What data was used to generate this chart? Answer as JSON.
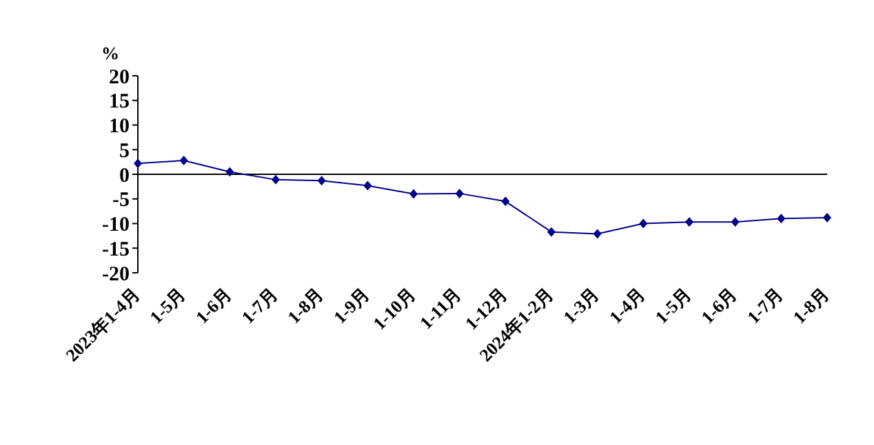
{
  "chart_data": {
    "type": "line",
    "ylabel": "%",
    "categories": [
      "2023年1-4月",
      "1-5月",
      "1-6月",
      "1-7月",
      "1-8月",
      "1-9月",
      "1-10月",
      "1-11月",
      "1-12月",
      "2024年1-2月",
      "1-3月",
      "1-4月",
      "1-5月",
      "1-6月",
      "1-7月",
      "1-8月"
    ],
    "series": [
      {
        "color": "#00008b",
        "values": [
          2.2,
          2.8,
          0.5,
          -1.1,
          -1.3,
          -2.3,
          -4.0,
          -3.9,
          -5.5,
          -11.7,
          -12.1,
          -10.0,
          -9.7,
          -9.7,
          -9.0,
          -8.8
        ]
      }
    ],
    "ylim": [
      -20,
      20
    ],
    "yticks": [
      -20,
      -15,
      -10,
      -5,
      0,
      5,
      10,
      15,
      20
    ],
    "ref_lines": [
      {
        "axis": "y",
        "value": 0,
        "color": "#000000"
      }
    ],
    "grid": false,
    "legend": false,
    "marker": "diamond",
    "line_style": "solid"
  }
}
